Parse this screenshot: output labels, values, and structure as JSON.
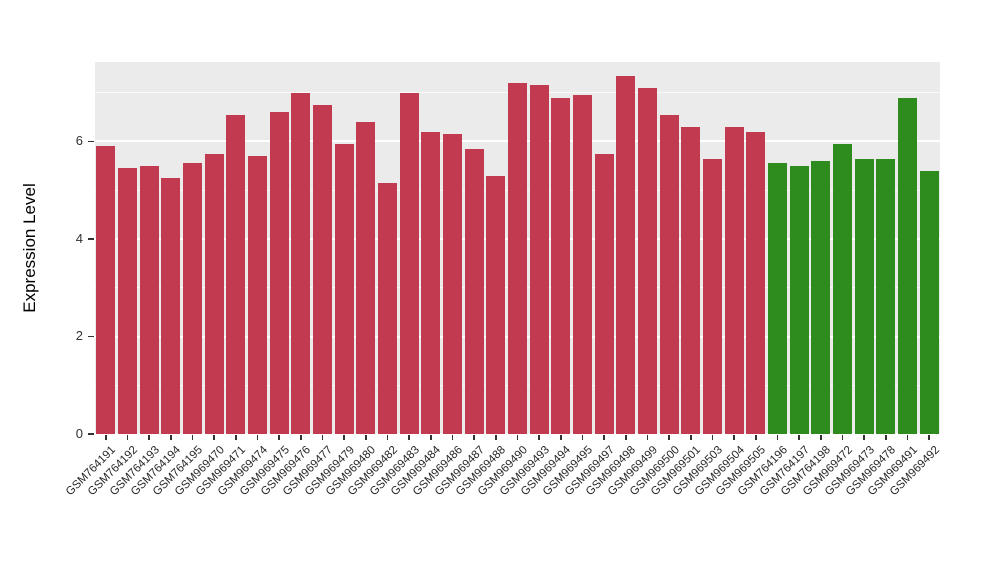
{
  "chart_data": {
    "type": "bar",
    "title": "",
    "xlabel": "",
    "ylabel": "Expression Level",
    "ylim": [
      0,
      7.63
    ],
    "yticks": [
      "0",
      "2",
      "4",
      "6"
    ],
    "ytick_values": [
      0,
      2,
      4,
      6
    ],
    "yminor_values": [
      1,
      3,
      5,
      7
    ],
    "grid": true,
    "legend_position": "none",
    "panel_background": "#EBEBEB",
    "gridline_color": "#FFFFFF",
    "group_colors": {
      "red": "#C13A50",
      "green": "#2E8B1E"
    },
    "categories": [
      "GSM764191",
      "GSM764192",
      "GSM764193",
      "GSM764194",
      "GSM764195",
      "GSM969470",
      "GSM969471",
      "GSM969474",
      "GSM969475",
      "GSM969476",
      "GSM969477",
      "GSM969479",
      "GSM969480",
      "GSM969482",
      "GSM969483",
      "GSM969484",
      "GSM969486",
      "GSM969487",
      "GSM969488",
      "GSM969490",
      "GSM969493",
      "GSM969494",
      "GSM969495",
      "GSM969497",
      "GSM969498",
      "GSM969499",
      "GSM969500",
      "GSM969501",
      "GSM969503",
      "GSM969504",
      "GSM969505",
      "GSM764196",
      "GSM764197",
      "GSM764198",
      "GSM969472",
      "GSM969473",
      "GSM969478",
      "GSM969491",
      "GSM969492"
    ],
    "values": [
      5.9,
      5.45,
      5.5,
      5.25,
      5.55,
      5.75,
      6.55,
      5.7,
      6.6,
      7.0,
      6.75,
      5.95,
      6.4,
      5.15,
      7.0,
      6.2,
      6.15,
      5.85,
      5.3,
      7.2,
      7.15,
      6.9,
      6.95,
      5.75,
      7.35,
      7.1,
      6.55,
      6.3,
      5.65,
      6.3,
      6.2,
      5.55,
      5.5,
      5.6,
      5.95,
      5.65,
      5.65,
      6.9,
      5.4
    ],
    "bar_groups": [
      "red",
      "red",
      "red",
      "red",
      "red",
      "red",
      "red",
      "red",
      "red",
      "red",
      "red",
      "red",
      "red",
      "red",
      "red",
      "red",
      "red",
      "red",
      "red",
      "red",
      "red",
      "red",
      "red",
      "red",
      "red",
      "red",
      "red",
      "red",
      "red",
      "red",
      "red",
      "green",
      "green",
      "green",
      "green",
      "green",
      "green",
      "green",
      "green"
    ]
  }
}
